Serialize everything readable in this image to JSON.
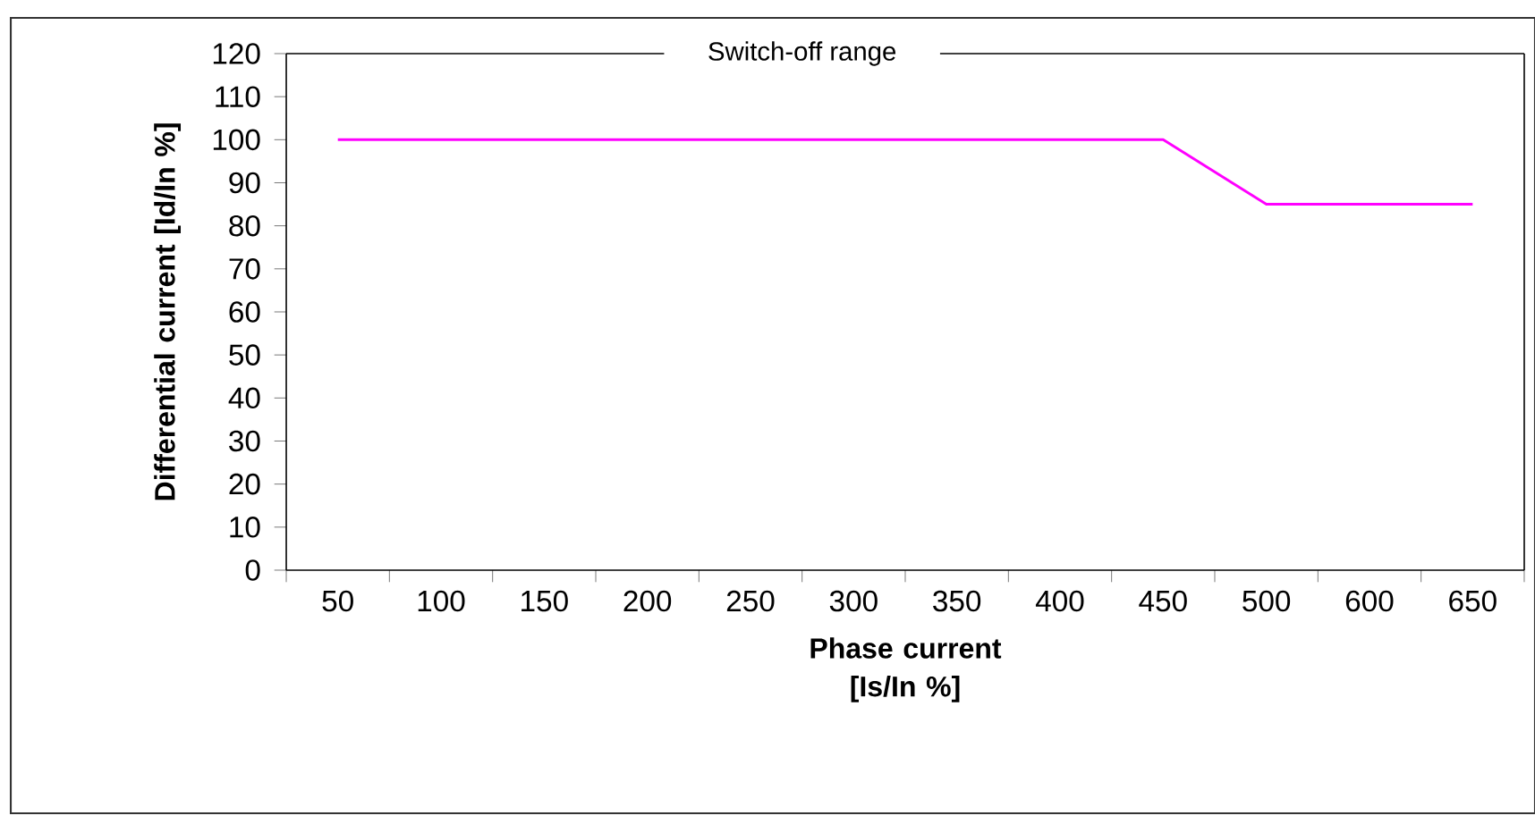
{
  "chart_data": {
    "type": "line",
    "title": "Switch-off range",
    "xlabel": "Phase current [Is/In %]",
    "ylabel": "Differential current [Id/In %]",
    "categories": [
      "50",
      "100",
      "150",
      "200",
      "250",
      "300",
      "350",
      "400",
      "450",
      "500",
      "600",
      "650"
    ],
    "series": [
      {
        "color": "#ff00ff",
        "values": [
          100,
          100,
          100,
          100,
          100,
          100,
          100,
          100,
          100,
          85,
          85,
          85
        ]
      }
    ],
    "ylim": [
      0,
      120
    ],
    "yticks": [
      0,
      10,
      20,
      30,
      40,
      50,
      60,
      70,
      80,
      90,
      100,
      110,
      120
    ],
    "marker": "none",
    "line_style": "solid"
  }
}
